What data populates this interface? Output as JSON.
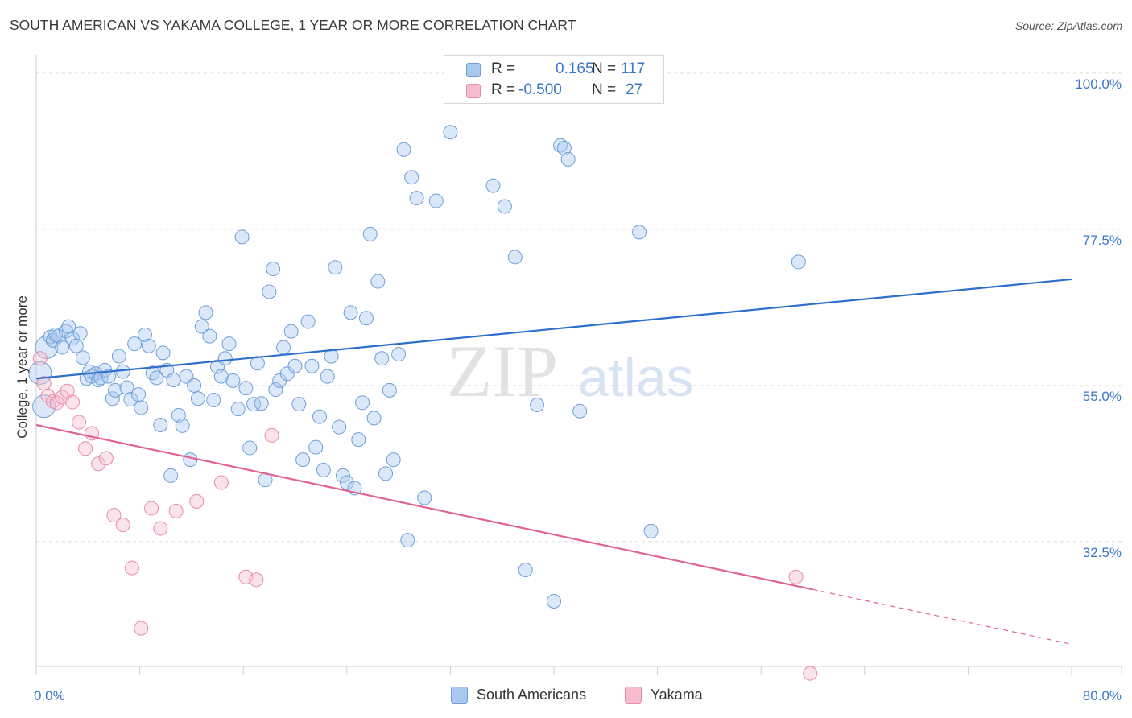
{
  "header": {
    "title": "SOUTH AMERICAN VS YAKAMA COLLEGE, 1 YEAR OR MORE CORRELATION CHART",
    "source": "Source: ZipAtlas.com"
  },
  "watermark": {
    "zip": "ZIP",
    "atlas": "atlas"
  },
  "legend": {
    "rows": [
      {
        "r_label": "R =",
        "r_value": "0.165",
        "n_label": "N =",
        "n_value": "117",
        "color": "#a9c8f0",
        "border": "#6f9fd8"
      },
      {
        "r_label": "R =",
        "r_value": "-0.500",
        "n_label": "N =",
        "n_value": "27",
        "color": "#f6bccd",
        "border": "#e98aa8"
      }
    ]
  },
  "bottom_legend": {
    "items": [
      {
        "label": "South Americans",
        "color": "#a9c8f0",
        "border": "#6f9fd8"
      },
      {
        "label": "Yakama",
        "color": "#f6bccd",
        "border": "#e98aa8"
      }
    ]
  },
  "chart_data": {
    "type": "scatter",
    "title": "SOUTH AMERICAN VS YAKAMA COLLEGE, 1 YEAR OR MORE CORRELATION CHART",
    "xlabel": "",
    "ylabel": "College, 1 year or more",
    "xlim": [
      0,
      80
    ],
    "ylim": [
      14.5,
      101.5
    ],
    "x_tick_labels": [
      "0.0%",
      "80.0%"
    ],
    "y_ticks": [
      32.5,
      55.0,
      77.5,
      100.0
    ],
    "y_tick_labels": [
      "32.5%",
      "55.0%",
      "77.5%",
      "100.0%"
    ],
    "grid": true,
    "colors": {
      "blue": "#3b76c9",
      "blue_line": "#2f6fcc",
      "pink_line": "#e0648f",
      "axis_label": "#3b76c9"
    },
    "series": [
      {
        "name": "South Americans",
        "R": 0.165,
        "N": 117,
        "color": "#a9c8f0",
        "stroke": "#6f9fd8",
        "trend": {
          "x": [
            0,
            80
          ],
          "y": [
            56.0,
            70.3
          ]
        },
        "points": [
          [
            0.3,
            56.8
          ],
          [
            0.6,
            52.0
          ],
          [
            0.8,
            60.5
          ],
          [
            1.1,
            62.0
          ],
          [
            1.3,
            61.5
          ],
          [
            1.5,
            62.3
          ],
          [
            1.7,
            62.1
          ],
          [
            2.0,
            60.5
          ],
          [
            2.3,
            62.8
          ],
          [
            2.5,
            63.5
          ],
          [
            2.8,
            61.8
          ],
          [
            3.1,
            60.7
          ],
          [
            3.4,
            62.5
          ],
          [
            3.6,
            59.0
          ],
          [
            3.9,
            56.0
          ],
          [
            4.1,
            57.0
          ],
          [
            4.3,
            56.3
          ],
          [
            4.6,
            56.7
          ],
          [
            4.8,
            55.8
          ],
          [
            5.0,
            56.1
          ],
          [
            5.3,
            57.2
          ],
          [
            5.6,
            56.3
          ],
          [
            5.9,
            53.1
          ],
          [
            6.1,
            54.3
          ],
          [
            6.4,
            59.2
          ],
          [
            6.7,
            57.0
          ],
          [
            7.0,
            54.7
          ],
          [
            7.3,
            53.0
          ],
          [
            7.6,
            61.0
          ],
          [
            7.9,
            53.7
          ],
          [
            8.1,
            51.8
          ],
          [
            8.4,
            62.3
          ],
          [
            8.7,
            60.7
          ],
          [
            9.0,
            56.8
          ],
          [
            9.3,
            56.1
          ],
          [
            9.6,
            49.3
          ],
          [
            9.8,
            59.7
          ],
          [
            10.1,
            57.2
          ],
          [
            10.4,
            42.0
          ],
          [
            10.6,
            55.8
          ],
          [
            11.0,
            50.7
          ],
          [
            11.3,
            49.2
          ],
          [
            11.6,
            56.3
          ],
          [
            11.9,
            44.3
          ],
          [
            12.2,
            55.0
          ],
          [
            12.5,
            53.1
          ],
          [
            12.8,
            63.5
          ],
          [
            13.1,
            65.5
          ],
          [
            13.4,
            62.1
          ],
          [
            13.7,
            52.9
          ],
          [
            14.0,
            57.7
          ],
          [
            14.3,
            56.3
          ],
          [
            14.6,
            58.9
          ],
          [
            14.9,
            61.0
          ],
          [
            15.2,
            55.7
          ],
          [
            15.6,
            51.6
          ],
          [
            15.9,
            76.4
          ],
          [
            16.2,
            54.6
          ],
          [
            16.5,
            46.0
          ],
          [
            16.8,
            52.3
          ],
          [
            17.1,
            58.2
          ],
          [
            17.4,
            52.4
          ],
          [
            17.7,
            41.4
          ],
          [
            18.0,
            68.5
          ],
          [
            18.3,
            71.8
          ],
          [
            18.5,
            54.4
          ],
          [
            18.8,
            55.7
          ],
          [
            19.1,
            60.5
          ],
          [
            19.4,
            56.7
          ],
          [
            19.7,
            62.8
          ],
          [
            20.0,
            57.8
          ],
          [
            20.3,
            52.3
          ],
          [
            20.6,
            44.3
          ],
          [
            21.0,
            64.2
          ],
          [
            21.3,
            57.8
          ],
          [
            21.6,
            46.1
          ],
          [
            21.9,
            50.5
          ],
          [
            22.2,
            42.8
          ],
          [
            22.5,
            56.3
          ],
          [
            22.8,
            59.2
          ],
          [
            23.1,
            72.0
          ],
          [
            23.4,
            49.0
          ],
          [
            23.7,
            42.0
          ],
          [
            24.0,
            41.0
          ],
          [
            24.3,
            65.5
          ],
          [
            24.6,
            40.2
          ],
          [
            24.9,
            47.2
          ],
          [
            25.2,
            52.5
          ],
          [
            25.5,
            64.7
          ],
          [
            25.8,
            76.8
          ],
          [
            26.1,
            50.3
          ],
          [
            26.4,
            70.0
          ],
          [
            26.7,
            58.9
          ],
          [
            27.0,
            42.3
          ],
          [
            27.3,
            54.3
          ],
          [
            27.6,
            44.3
          ],
          [
            28.0,
            59.5
          ],
          [
            28.4,
            89.0
          ],
          [
            28.7,
            32.7
          ],
          [
            29.0,
            85.0
          ],
          [
            29.4,
            82.0
          ],
          [
            30.0,
            38.8
          ],
          [
            30.9,
            81.6
          ],
          [
            32.0,
            91.5
          ],
          [
            35.3,
            83.8
          ],
          [
            36.2,
            80.8
          ],
          [
            37.0,
            73.5
          ],
          [
            37.8,
            28.4
          ],
          [
            38.7,
            52.2
          ],
          [
            40.0,
            23.9
          ],
          [
            40.5,
            89.6
          ],
          [
            40.8,
            89.2
          ],
          [
            41.1,
            87.6
          ],
          [
            42.0,
            51.3
          ],
          [
            46.6,
            77.1
          ],
          [
            47.5,
            34.0
          ],
          [
            58.9,
            72.8
          ]
        ]
      },
      {
        "name": "Yakama",
        "R": -0.5,
        "N": 27,
        "color": "#f6bccd",
        "stroke": "#e98aa8",
        "trend": {
          "x": [
            0,
            60.0,
            80
          ],
          "y": [
            49.3,
            25.6,
            17.7
          ],
          "dashed_from": 60.0
        },
        "points": [
          [
            0.3,
            58.9
          ],
          [
            0.6,
            55.3
          ],
          [
            0.9,
            53.5
          ],
          [
            1.3,
            52.7
          ],
          [
            1.6,
            52.5
          ],
          [
            2.0,
            53.3
          ],
          [
            2.4,
            54.2
          ],
          [
            2.8,
            52.6
          ],
          [
            3.3,
            49.7
          ],
          [
            3.8,
            45.9
          ],
          [
            4.3,
            48.1
          ],
          [
            4.8,
            43.7
          ],
          [
            5.4,
            44.5
          ],
          [
            6.0,
            36.3
          ],
          [
            6.7,
            34.9
          ],
          [
            7.4,
            28.7
          ],
          [
            8.1,
            20.0
          ],
          [
            8.9,
            37.3
          ],
          [
            9.6,
            34.4
          ],
          [
            10.8,
            36.9
          ],
          [
            12.4,
            38.3
          ],
          [
            14.3,
            41.0
          ],
          [
            16.2,
            27.4
          ],
          [
            17.0,
            27.0
          ],
          [
            18.2,
            47.8
          ],
          [
            58.7,
            27.4
          ],
          [
            59.8,
            13.5
          ]
        ]
      }
    ]
  }
}
